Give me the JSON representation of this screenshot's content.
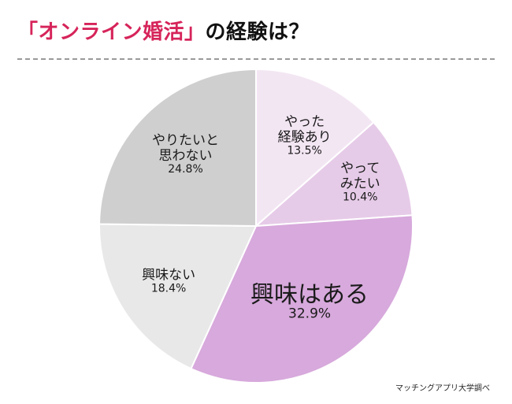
{
  "header": {
    "title_accent": "「オンライン婚活」",
    "title_rest": "の経験は？"
  },
  "chart_data": {
    "type": "pie",
    "title": "「オンライン婚活」の経験は？",
    "start": "12 o'clock, clockwise",
    "slices": [
      {
        "label": [
          "やった",
          "経験あり"
        ],
        "percent_text": "13.5%",
        "value": 13.5,
        "color": "#f3e6f3"
      },
      {
        "label": [
          "やって",
          "みたい"
        ],
        "percent_text": "10.4%",
        "value": 10.4,
        "color": "#e6cbe8"
      },
      {
        "label": [
          "興味はある"
        ],
        "percent_text": "32.9%",
        "value": 32.9,
        "color": "#d7a9dc"
      },
      {
        "label": [
          "興味ない"
        ],
        "percent_text": "18.4%",
        "value": 18.4,
        "color": "#e8e8e8"
      },
      {
        "label": [
          "やりたいと",
          "思わない"
        ],
        "percent_text": "24.8%",
        "value": 24.8,
        "color": "#cfcfcf"
      }
    ]
  },
  "footer": {
    "source": "マッチングアプリ大学調べ"
  }
}
